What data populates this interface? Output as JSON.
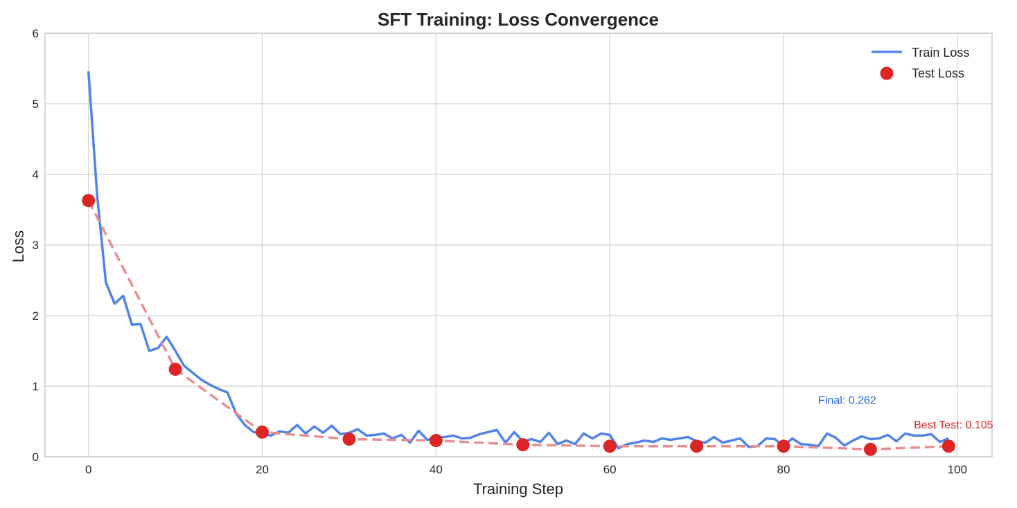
{
  "chart_data": {
    "type": "line",
    "title": "SFT Training: Loss Convergence",
    "xlabel": "Training Step",
    "ylabel": "Loss",
    "xlim": [
      -5,
      104
    ],
    "ylim": [
      0,
      6
    ],
    "xticks": [
      0,
      20,
      40,
      60,
      80,
      100
    ],
    "yticks": [
      0,
      1,
      2,
      3,
      4,
      5,
      6
    ],
    "grid": true,
    "legend_position": "top-right",
    "series": [
      {
        "name": "Train Loss",
        "style": "line",
        "color": "#5183e8",
        "x": [
          0,
          1,
          2,
          3,
          4,
          5,
          6,
          7,
          8,
          9,
          10,
          11,
          12,
          13,
          14,
          15,
          16,
          17,
          18,
          19,
          20,
          21,
          22,
          23,
          24,
          25,
          26,
          27,
          28,
          29,
          30,
          31,
          32,
          33,
          34,
          35,
          36,
          37,
          38,
          39,
          40,
          41,
          42,
          43,
          44,
          45,
          46,
          47,
          48,
          49,
          50,
          51,
          52,
          53,
          54,
          55,
          56,
          57,
          58,
          59,
          60,
          61,
          62,
          63,
          64,
          65,
          66,
          67,
          68,
          69,
          70,
          71,
          72,
          73,
          74,
          75,
          76,
          77,
          78,
          79,
          80,
          81,
          82,
          83,
          84,
          85,
          86,
          87,
          88,
          89,
          90,
          91,
          92,
          93,
          94,
          95,
          96,
          97,
          98,
          99
        ],
        "values": [
          5.46,
          3.7,
          2.47,
          2.17,
          2.28,
          1.87,
          1.88,
          1.5,
          1.54,
          1.7,
          1.5,
          1.29,
          1.19,
          1.09,
          1.02,
          0.96,
          0.91,
          0.61,
          0.45,
          0.35,
          0.33,
          0.3,
          0.36,
          0.34,
          0.45,
          0.33,
          0.43,
          0.34,
          0.44,
          0.32,
          0.34,
          0.39,
          0.3,
          0.31,
          0.33,
          0.26,
          0.31,
          0.2,
          0.37,
          0.24,
          0.27,
          0.28,
          0.3,
          0.26,
          0.27,
          0.32,
          0.35,
          0.38,
          0.2,
          0.35,
          0.22,
          0.25,
          0.21,
          0.34,
          0.18,
          0.23,
          0.18,
          0.33,
          0.26,
          0.33,
          0.31,
          0.12,
          0.18,
          0.2,
          0.23,
          0.21,
          0.26,
          0.24,
          0.26,
          0.28,
          0.22,
          0.2,
          0.28,
          0.2,
          0.23,
          0.26,
          0.14,
          0.15,
          0.26,
          0.25,
          0.15,
          0.26,
          0.18,
          0.17,
          0.15,
          0.33,
          0.27,
          0.16,
          0.23,
          0.29,
          0.25,
          0.26,
          0.31,
          0.22,
          0.33,
          0.3,
          0.3,
          0.32,
          0.21,
          0.262
        ]
      },
      {
        "name": "Test Loss",
        "style": "scatter+dashed",
        "color": "#dc2626",
        "x": [
          0,
          10,
          20,
          30,
          40,
          50,
          60,
          70,
          80,
          90,
          99
        ],
        "values": [
          3.63,
          1.24,
          0.35,
          0.25,
          0.23,
          0.17,
          0.15,
          0.15,
          0.15,
          0.105,
          0.15
        ]
      }
    ],
    "annotations": [
      {
        "text": "Final: 0.262",
        "x": 84,
        "y": 0.75,
        "color": "#2563eb"
      },
      {
        "text": "Best Test: 0.105",
        "x": 95,
        "y": 0.4,
        "color": "#dc2626"
      }
    ]
  }
}
